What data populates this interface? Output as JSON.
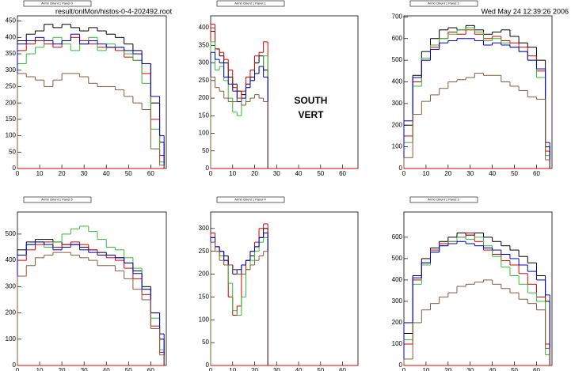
{
  "header": {
    "file": "result/onlMon/histos-0-4-202492.root",
    "date": "Wed May 24 12:39:26 2006"
  },
  "chart_data": [
    {
      "type": "histogram",
      "title": "Arm0 Orient 1 Panel 0",
      "xlim": [
        0,
        67
      ],
      "ylim": [
        0,
        466
      ],
      "xticks": [
        0,
        10,
        20,
        30,
        40,
        50,
        60
      ],
      "yticks": [
        0,
        50,
        100,
        150,
        200,
        250,
        300,
        350,
        400,
        450
      ],
      "bins": [
        0,
        4,
        8,
        12,
        16,
        20,
        24,
        28,
        32,
        36,
        40,
        44,
        48,
        52,
        56,
        60,
        64,
        66
      ],
      "series": [
        {
          "color": "#000000",
          "values": [
            390,
            410,
            420,
            440,
            430,
            440,
            430,
            420,
            430,
            420,
            410,
            400,
            380,
            360,
            320,
            200,
            80
          ]
        },
        {
          "color": "#dd0000",
          "values": [
            360,
            380,
            390,
            380,
            370,
            390,
            400,
            390,
            380,
            370,
            370,
            360,
            340,
            330,
            290,
            150,
            40
          ]
        },
        {
          "color": "#33bb33",
          "values": [
            320,
            350,
            370,
            390,
            400,
            380,
            360,
            380,
            400,
            360,
            380,
            370,
            350,
            330,
            260,
            120,
            20
          ]
        },
        {
          "color": "#0000cc",
          "values": [
            380,
            390,
            400,
            390,
            380,
            390,
            410,
            380,
            390,
            380,
            370,
            370,
            360,
            350,
            320,
            220,
            100
          ]
        },
        {
          "color": "#8b5a3c",
          "values": [
            290,
            280,
            270,
            250,
            270,
            290,
            290,
            280,
            260,
            250,
            250,
            240,
            220,
            200,
            180,
            60,
            10
          ]
        }
      ]
    },
    {
      "type": "histogram",
      "title": "Arm0 Orient 1 Panel 1",
      "xlim": [
        0,
        67
      ],
      "ylim": [
        0,
        434
      ],
      "xticks": [
        0,
        10,
        20,
        30,
        40,
        50,
        60
      ],
      "yticks": [
        0,
        50,
        100,
        150,
        200,
        250,
        300,
        350,
        400
      ],
      "annotations": [
        "SOUTH",
        "VERT"
      ],
      "bins": [
        0,
        2,
        4,
        6,
        8,
        10,
        12,
        14,
        16,
        18,
        20,
        22,
        24,
        26
      ],
      "series": [
        {
          "color": "#000000",
          "values": [
            390,
            340,
            320,
            300,
            260,
            240,
            220,
            210,
            240,
            260,
            300,
            320,
            280
          ]
        },
        {
          "color": "#dd0000",
          "values": [
            410,
            340,
            330,
            310,
            280,
            230,
            200,
            220,
            260,
            280,
            320,
            330,
            360
          ]
        },
        {
          "color": "#33bb33",
          "values": [
            360,
            280,
            290,
            250,
            200,
            160,
            150,
            180,
            230,
            250,
            270,
            290,
            320
          ]
        },
        {
          "color": "#0000cc",
          "values": [
            330,
            310,
            300,
            260,
            240,
            220,
            190,
            200,
            230,
            250,
            270,
            290,
            260
          ]
        },
        {
          "color": "#8b5a3c",
          "values": [
            260,
            230,
            220,
            200,
            190,
            190,
            200,
            180,
            190,
            200,
            210,
            200,
            190
          ]
        }
      ]
    },
    {
      "type": "histogram",
      "title": "Arm0 Orient 1 Panel 2",
      "xlim": [
        0,
        67
      ],
      "ylim": [
        0,
        705
      ],
      "xticks": [
        0,
        10,
        20,
        30,
        40,
        50,
        60
      ],
      "yticks": [
        0,
        100,
        200,
        300,
        400,
        500,
        600,
        700
      ],
      "bins": [
        0,
        4,
        8,
        12,
        16,
        20,
        24,
        28,
        32,
        36,
        40,
        44,
        48,
        52,
        56,
        60,
        64,
        66
      ],
      "series": [
        {
          "color": "#000000",
          "values": [
            200,
            430,
            540,
            600,
            640,
            650,
            640,
            660,
            640,
            620,
            630,
            640,
            610,
            580,
            560,
            500,
            100
          ]
        },
        {
          "color": "#dd0000",
          "values": [
            150,
            400,
            500,
            560,
            600,
            630,
            620,
            640,
            620,
            600,
            610,
            590,
            580,
            560,
            520,
            450,
            80
          ]
        },
        {
          "color": "#33bb33",
          "values": [
            120,
            380,
            510,
            570,
            600,
            620,
            640,
            650,
            630,
            590,
            600,
            580,
            560,
            540,
            500,
            420,
            60
          ]
        },
        {
          "color": "#0000cc",
          "values": [
            220,
            420,
            500,
            550,
            580,
            590,
            600,
            600,
            590,
            570,
            580,
            570,
            560,
            540,
            500,
            460,
            120
          ]
        },
        {
          "color": "#8b5a3c",
          "values": [
            50,
            250,
            310,
            340,
            370,
            400,
            410,
            420,
            440,
            430,
            430,
            400,
            380,
            360,
            330,
            320,
            40
          ]
        }
      ]
    },
    {
      "type": "histogram",
      "title": "Arm0 Orient 1 Panel 5",
      "xlim": [
        0,
        67
      ],
      "ylim": [
        0,
        584
      ],
      "xticks": [
        0,
        10,
        20,
        30,
        40,
        50,
        60
      ],
      "yticks": [
        0,
        100,
        200,
        300,
        400,
        500
      ],
      "bins": [
        0,
        4,
        8,
        12,
        16,
        20,
        24,
        28,
        32,
        36,
        40,
        44,
        48,
        52,
        56,
        60,
        64,
        66
      ],
      "series": [
        {
          "color": "#000000",
          "values": [
            440,
            470,
            480,
            480,
            470,
            460,
            460,
            450,
            440,
            430,
            420,
            410,
            390,
            360,
            300,
            200,
            100
          ]
        },
        {
          "color": "#dd0000",
          "values": [
            400,
            440,
            460,
            470,
            450,
            460,
            470,
            460,
            440,
            420,
            410,
            400,
            370,
            330,
            270,
            150,
            50
          ]
        },
        {
          "color": "#33bb33",
          "values": [
            420,
            460,
            470,
            450,
            470,
            500,
            520,
            530,
            510,
            480,
            450,
            440,
            410,
            370,
            290,
            180,
            60
          ]
        },
        {
          "color": "#0000cc",
          "values": [
            420,
            460,
            470,
            460,
            440,
            450,
            460,
            440,
            430,
            420,
            420,
            410,
            390,
            350,
            290,
            200,
            120
          ]
        },
        {
          "color": "#8b5a3c",
          "values": [
            340,
            380,
            410,
            420,
            430,
            430,
            420,
            410,
            400,
            380,
            380,
            360,
            330,
            290,
            250,
            140,
            40
          ]
        }
      ]
    },
    {
      "type": "histogram",
      "title": "Arm0 Orient 1 Panel 4",
      "xlim": [
        0,
        67
      ],
      "ylim": [
        0,
        336
      ],
      "xticks": [
        0,
        10,
        20,
        30,
        40,
        50,
        60
      ],
      "yticks": [
        0,
        50,
        100,
        150,
        200,
        250,
        300
      ],
      "bins": [
        0,
        2,
        4,
        6,
        8,
        10,
        12,
        14,
        16,
        18,
        20,
        22,
        24,
        26
      ],
      "series": [
        {
          "color": "#000000",
          "values": [
            280,
            260,
            250,
            240,
            220,
            210,
            200,
            220,
            230,
            240,
            260,
            280,
            300
          ]
        },
        {
          "color": "#dd0000",
          "values": [
            290,
            260,
            240,
            230,
            150,
            110,
            130,
            200,
            230,
            250,
            270,
            300,
            310
          ]
        },
        {
          "color": "#33bb33",
          "values": [
            270,
            250,
            240,
            220,
            180,
            120,
            110,
            150,
            210,
            230,
            250,
            270,
            280
          ]
        },
        {
          "color": "#0000cc",
          "values": [
            280,
            260,
            250,
            230,
            220,
            200,
            210,
            220,
            230,
            250,
            260,
            280,
            290
          ]
        },
        {
          "color": "#8b5a3c",
          "values": [
            270,
            250,
            230,
            220,
            220,
            210,
            200,
            200,
            210,
            220,
            230,
            240,
            250
          ]
        }
      ]
    },
    {
      "type": "histogram",
      "title": "Arm0 Orient 1 Panel 3",
      "xlim": [
        0,
        67
      ],
      "ylim": [
        0,
        718
      ],
      "xticks": [
        0,
        10,
        20,
        30,
        40,
        50,
        60
      ],
      "yticks": [
        0,
        100,
        200,
        300,
        400,
        500,
        600
      ],
      "bins": [
        0,
        4,
        8,
        12,
        16,
        20,
        24,
        28,
        32,
        36,
        40,
        44,
        48,
        52,
        56,
        60,
        64,
        66
      ],
      "series": [
        {
          "color": "#000000",
          "values": [
            150,
            420,
            500,
            550,
            580,
            600,
            620,
            610,
            620,
            600,
            580,
            560,
            540,
            510,
            480,
            420,
            300
          ]
        },
        {
          "color": "#dd0000",
          "values": [
            100,
            400,
            480,
            540,
            570,
            580,
            600,
            620,
            580,
            540,
            520,
            490,
            470,
            430,
            380,
            320,
            100
          ]
        },
        {
          "color": "#33bb33",
          "values": [
            120,
            380,
            470,
            530,
            560,
            580,
            600,
            590,
            600,
            560,
            510,
            460,
            420,
            380,
            340,
            300,
            50
          ]
        },
        {
          "color": "#0000cc",
          "values": [
            200,
            410,
            480,
            530,
            560,
            570,
            580,
            570,
            560,
            550,
            540,
            520,
            500,
            470,
            440,
            400,
            330
          ]
        },
        {
          "color": "#8b5a3c",
          "values": [
            30,
            200,
            260,
            290,
            320,
            340,
            370,
            380,
            390,
            400,
            380,
            360,
            340,
            310,
            290,
            260,
            80
          ]
        }
      ]
    }
  ]
}
